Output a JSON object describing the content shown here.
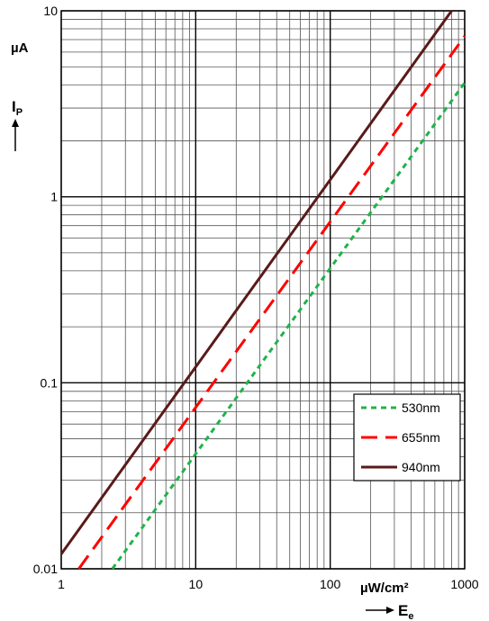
{
  "chart_data": {
    "type": "line",
    "x_scale": "log",
    "y_scale": "log",
    "xlim": [
      1,
      1000
    ],
    "ylim": [
      0.01,
      10
    ],
    "x_ticks": [
      "1",
      "10",
      "100",
      "1000"
    ],
    "y_ticks": [
      "0.01",
      "0.1",
      "1",
      "10"
    ],
    "grid": true,
    "legend_position": "bottom-right",
    "y_axis_symbol": "I",
    "y_axis_symbol_sub": "P",
    "y_unit": "µA",
    "x_axis_symbol": "E",
    "x_axis_symbol_sub": "e",
    "x_unit": "µW/cm²",
    "series": [
      {
        "name": "530nm",
        "color": "#1fb34a",
        "dash": "short-dash",
        "x": [
          2.4,
          1000
        ],
        "y": [
          0.01,
          4.1
        ]
      },
      {
        "name": "655nm",
        "color": "#ff0000",
        "dash": "long-dash",
        "x": [
          1.35,
          1000
        ],
        "y": [
          0.01,
          7.3
        ]
      },
      {
        "name": "940nm",
        "color": "#5a1a1a",
        "dash": "solid",
        "x": [
          1,
          800
        ],
        "y": [
          0.012,
          10
        ]
      }
    ]
  }
}
